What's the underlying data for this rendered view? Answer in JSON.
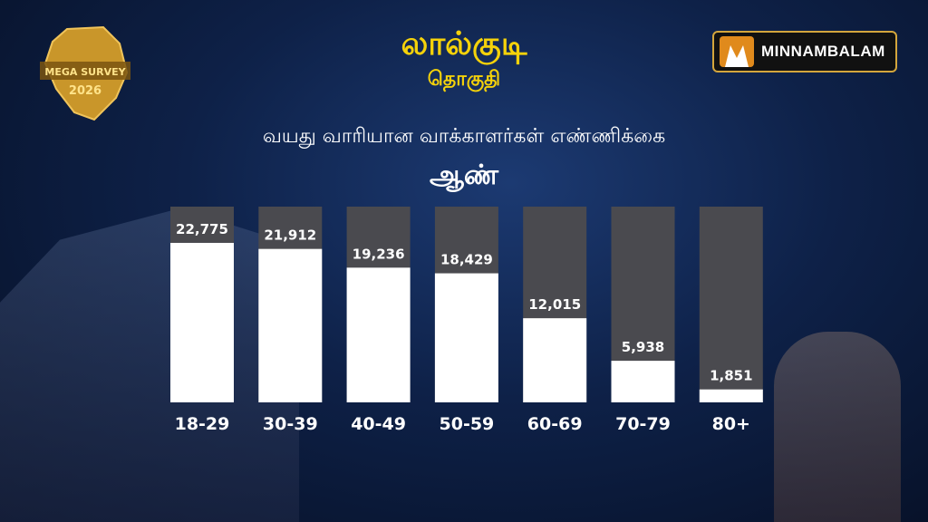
{
  "header": {
    "constituency": "லால்குடி",
    "constituency_sub": "தொகுதி",
    "subtitle": "வயது வாரியான வாக்காளர்கள் எண்ணிக்கை",
    "gender": "ஆண்"
  },
  "badge": {
    "line1": "MEGA SURVEY",
    "year": "2026"
  },
  "brand": {
    "name": "MINNAMBALAM",
    "accent": "#e08a1c",
    "border": "#d4a63c"
  },
  "colors": {
    "title": "#f5d20a",
    "bar": "#ffffff",
    "track": "#4a4a4f"
  },
  "chart_data": {
    "type": "bar",
    "title": "",
    "categories": [
      "18-29",
      "30-39",
      "40-49",
      "50-59",
      "60-69",
      "70-79",
      "80+"
    ],
    "values": [
      22775,
      21912,
      19236,
      18429,
      12015,
      5938,
      1851
    ],
    "labels": [
      "22,775",
      "21,912",
      "19,236",
      "18,429",
      "12,015",
      "5,938",
      "1,851"
    ],
    "ylim": [
      0,
      26000
    ],
    "grid": false,
    "legend": "none"
  }
}
